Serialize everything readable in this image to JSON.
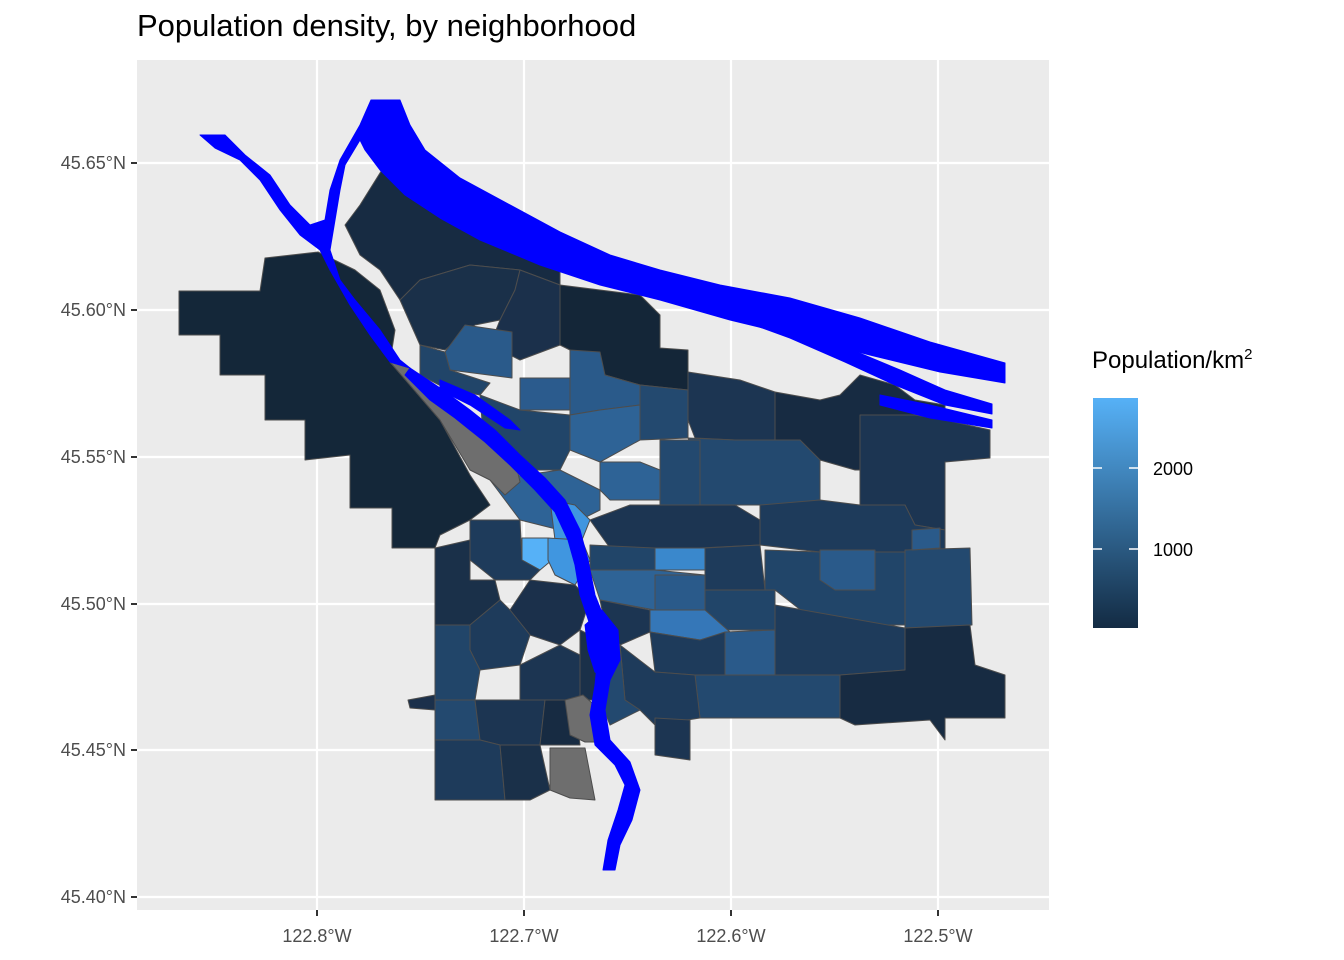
{
  "title": "Population density, by neighborhood",
  "axes": {
    "x_ticks": [
      "122.8°W",
      "122.7°W",
      "122.6°W",
      "122.5°W"
    ],
    "y_ticks": [
      "45.65°N",
      "45.60°N",
      "45.55°N",
      "45.50°N",
      "45.45°N",
      "45.40°N"
    ]
  },
  "legend": {
    "title_base": "Population/km",
    "title_sup": "2",
    "labels": [
      "2000",
      "1000"
    ],
    "color_low": "#132B43",
    "color_high": "#56B1F7"
  },
  "colors": {
    "panel": "#ebebeb",
    "grid": "#ffffff",
    "river": "#0000ff",
    "missing": "#7f7f7f",
    "border": "#4d4d4d"
  }
}
